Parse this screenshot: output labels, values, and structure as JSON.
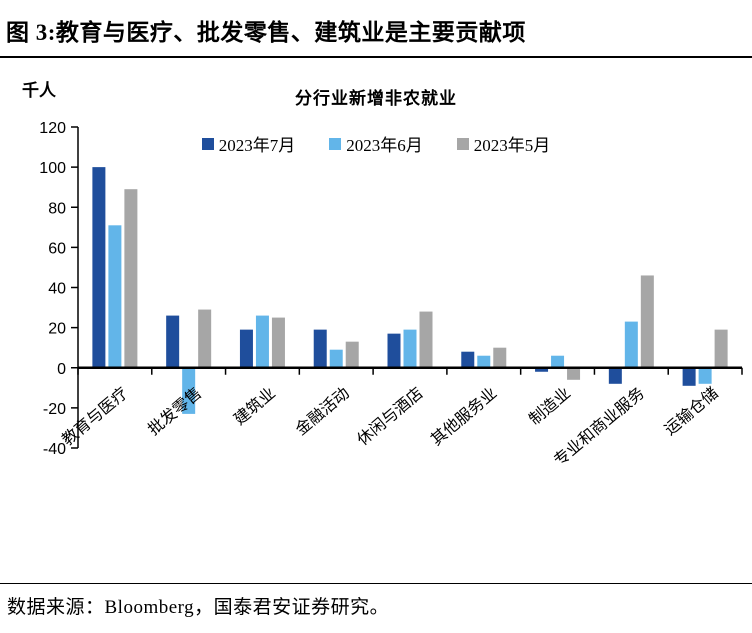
{
  "header": {
    "title": "图 3:教育与医疗、批发零售、建筑业是主要贡献项"
  },
  "chart_data": {
    "type": "bar",
    "title": "分行业新增非农就业",
    "unit_label": "千人",
    "categories": [
      "教育与医疗",
      "批发零售",
      "建筑业",
      "金融活动",
      "休闲与酒店",
      "其他服务业",
      "制造业",
      "专业和商业服务",
      "运输仓储"
    ],
    "series": [
      {
        "name": "2023年7月",
        "color": "#1F4E9C",
        "values": [
          100,
          26,
          19,
          19,
          17,
          8,
          -2,
          -8,
          -9
        ]
      },
      {
        "name": "2023年6月",
        "color": "#62B5E9",
        "values": [
          71,
          -23,
          26,
          9,
          19,
          6,
          6,
          23,
          -8
        ]
      },
      {
        "name": "2023年5月",
        "color": "#A6A6A6",
        "values": [
          89,
          29,
          25,
          13,
          28,
          10,
          -6,
          46,
          19
        ]
      }
    ],
    "ylim": [
      -40,
      120
    ],
    "yticks": [
      120,
      100,
      80,
      60,
      40,
      20,
      0,
      -20,
      -40
    ],
    "grid": false,
    "legend_position": "top",
    "xlabel": "",
    "ylabel": "千人"
  },
  "footer": {
    "source": "数据来源：Bloomberg，国泰君安证券研究。"
  }
}
